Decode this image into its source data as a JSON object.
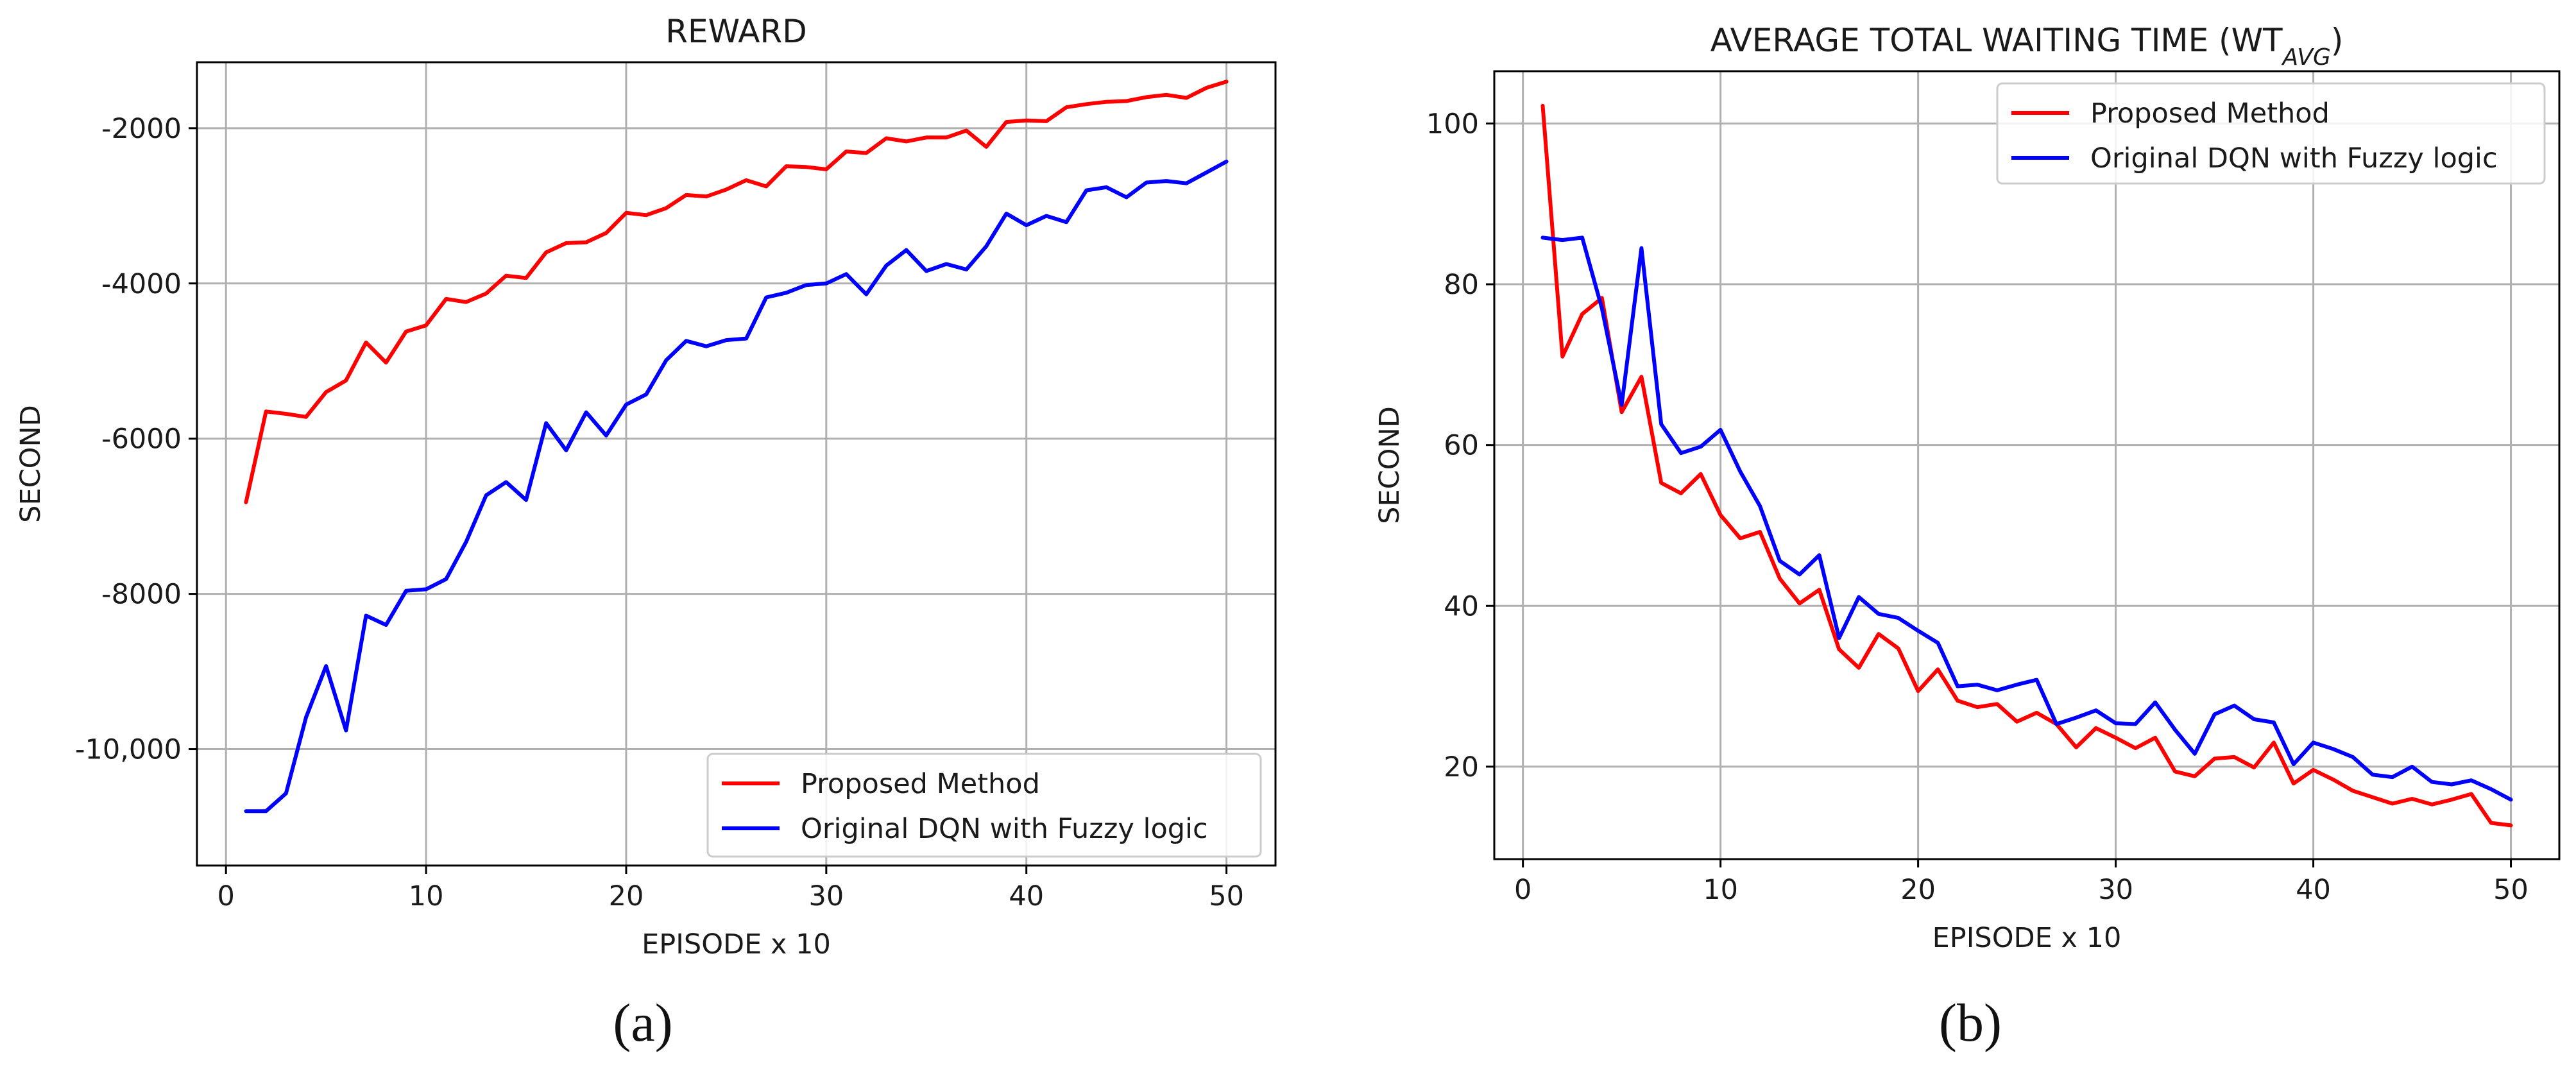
{
  "chart_data": [
    {
      "type": "line",
      "title": "REWARD",
      "xlabel": "EPISODE x 10",
      "ylabel": "SECOND",
      "caption": "(a)",
      "xlim": [
        -1.45,
        52.45
      ],
      "ylim": [
        -11500,
        -1150
      ],
      "xticks": [
        0,
        10,
        20,
        30,
        40,
        50
      ],
      "yticks": [
        -10000,
        -8000,
        -6000,
        -4000,
        -2000
      ],
      "ytick_labels": [
        "-10,000",
        "-8000",
        "-6000",
        "-4000",
        "-2000"
      ],
      "grid": true,
      "legend_position": "lower-right",
      "x": [
        1,
        2,
        3,
        4,
        5,
        6,
        7,
        8,
        9,
        10,
        11,
        12,
        13,
        14,
        15,
        16,
        17,
        18,
        19,
        20,
        21,
        22,
        23,
        24,
        25,
        26,
        27,
        28,
        29,
        30,
        31,
        32,
        33,
        34,
        35,
        36,
        37,
        38,
        39,
        40,
        41,
        42,
        43,
        44,
        45,
        46,
        47,
        48,
        49,
        50
      ],
      "series": [
        {
          "name": "Proposed Method",
          "color": "#ff0000",
          "values": [
            -6820,
            -5650,
            -5680,
            -5720,
            -5400,
            -5250,
            -4760,
            -5020,
            -4620,
            -4540,
            -4200,
            -4240,
            -4130,
            -3900,
            -3930,
            -3600,
            -3480,
            -3470,
            -3350,
            -3090,
            -3120,
            -3030,
            -2860,
            -2880,
            -2790,
            -2670,
            -2750,
            -2490,
            -2500,
            -2530,
            -2300,
            -2320,
            -2130,
            -2170,
            -2120,
            -2120,
            -2030,
            -2240,
            -1920,
            -1900,
            -1910,
            -1730,
            -1690,
            -1660,
            -1650,
            -1600,
            -1570,
            -1610,
            -1480,
            -1400
          ]
        },
        {
          "name": "Original DQN with Fuzzy logic",
          "color": "#0000ff",
          "values": [
            -10800,
            -10800,
            -10570,
            -9590,
            -8930,
            -9760,
            -8280,
            -8400,
            -7960,
            -7940,
            -7810,
            -7330,
            -6730,
            -6560,
            -6790,
            -5800,
            -6150,
            -5660,
            -5960,
            -5560,
            -5430,
            -4990,
            -4740,
            -4810,
            -4730,
            -4710,
            -4180,
            -4120,
            -4020,
            -4000,
            -3880,
            -4140,
            -3770,
            -3570,
            -3840,
            -3750,
            -3820,
            -3520,
            -3100,
            -3250,
            -3130,
            -3210,
            -2800,
            -2760,
            -2890,
            -2700,
            -2680,
            -2710,
            -2570,
            -2430
          ]
        }
      ]
    },
    {
      "type": "line",
      "title": "AVERAGE TOTAL WAITING TIME (WT",
      "title_subscript": "AVG",
      "title_suffix": ")",
      "xlabel": "EPISODE x 10",
      "ylabel": "SECOND",
      "caption": "(b)",
      "xlim": [
        -1.45,
        52.45
      ],
      "ylim": [
        8.5,
        106.5
      ],
      "xticks": [
        0,
        10,
        20,
        30,
        40,
        50
      ],
      "yticks": [
        20,
        40,
        60,
        80,
        100
      ],
      "ytick_labels": [
        "20",
        "40",
        "60",
        "80",
        "100"
      ],
      "grid": true,
      "legend_position": "upper-right",
      "x": [
        1,
        2,
        3,
        4,
        5,
        6,
        7,
        8,
        9,
        10,
        11,
        12,
        13,
        14,
        15,
        16,
        17,
        18,
        19,
        20,
        21,
        22,
        23,
        24,
        25,
        26,
        27,
        28,
        29,
        30,
        31,
        32,
        33,
        34,
        35,
        36,
        37,
        38,
        39,
        40,
        41,
        42,
        43,
        44,
        45,
        46,
        47,
        48,
        49,
        50
      ],
      "series": [
        {
          "name": "Proposed Method",
          "color": "#ff0000",
          "values": [
            102.2,
            71.0,
            76.3,
            78.3,
            64.1,
            68.5,
            55.3,
            54.0,
            56.4,
            51.3,
            48.4,
            49.2,
            43.4,
            40.3,
            42.0,
            34.6,
            32.3,
            36.5,
            34.7,
            29.4,
            32.1,
            28.2,
            27.4,
            27.8,
            25.6,
            26.7,
            25.3,
            22.4,
            24.8,
            23.6,
            22.3,
            23.6,
            19.4,
            18.8,
            21.0,
            21.2,
            19.9,
            23.0,
            17.9,
            19.6,
            18.4,
            17.0,
            16.2,
            15.4,
            16.0,
            15.3,
            15.9,
            16.6,
            13.0,
            12.7
          ]
        },
        {
          "name": "Original DQN with Fuzzy logic",
          "color": "#0000ff",
          "values": [
            85.8,
            85.5,
            85.8,
            77.0,
            65.0,
            84.5,
            62.6,
            59.0,
            59.8,
            61.9,
            56.7,
            52.4,
            45.6,
            43.9,
            46.3,
            36.0,
            41.1,
            39.0,
            38.5,
            36.9,
            35.4,
            30.0,
            30.2,
            29.5,
            30.2,
            30.8,
            25.3,
            26.1,
            27.0,
            25.4,
            25.3,
            28.0,
            24.6,
            21.6,
            26.5,
            27.6,
            25.9,
            25.5,
            20.3,
            23.0,
            22.2,
            21.2,
            19.0,
            18.7,
            20.0,
            18.1,
            17.8,
            18.3,
            17.2,
            15.9
          ]
        }
      ]
    }
  ]
}
